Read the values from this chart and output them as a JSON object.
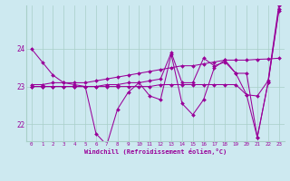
{
  "xlabel": "Windchill (Refroidissement éolien,°C)",
  "bg_color": "#cde9f0",
  "line_color": "#990099",
  "grid_color": "#a8cfc8",
  "xlim": [
    -0.5,
    23.5
  ],
  "ylim": [
    21.55,
    25.15
  ],
  "yticks": [
    22,
    23,
    24
  ],
  "xticks": [
    0,
    1,
    2,
    3,
    4,
    5,
    6,
    7,
    8,
    9,
    10,
    11,
    12,
    13,
    14,
    15,
    16,
    17,
    18,
    19,
    20,
    21,
    22,
    23
  ],
  "series": [
    [
      24.0,
      23.65,
      23.3,
      23.1,
      23.05,
      23.0,
      21.75,
      21.45,
      22.4,
      22.85,
      23.1,
      22.75,
      22.65,
      23.85,
      22.55,
      22.25,
      22.65,
      23.5,
      23.7,
      23.35,
      23.35,
      21.65,
      23.1,
      25.0
    ],
    [
      23.05,
      23.05,
      23.1,
      23.1,
      23.1,
      23.1,
      23.15,
      23.2,
      23.25,
      23.3,
      23.35,
      23.4,
      23.45,
      23.5,
      23.55,
      23.55,
      23.6,
      23.65,
      23.7,
      23.7,
      23.7,
      23.72,
      23.73,
      23.75
    ],
    [
      23.0,
      23.0,
      23.0,
      23.0,
      23.0,
      23.0,
      23.0,
      23.05,
      23.05,
      23.1,
      23.1,
      23.15,
      23.2,
      23.9,
      23.1,
      23.1,
      23.75,
      23.55,
      23.65,
      23.35,
      22.78,
      22.75,
      23.15,
      25.15
    ],
    [
      23.0,
      23.0,
      23.0,
      23.0,
      23.0,
      23.0,
      23.0,
      23.0,
      23.0,
      23.0,
      23.0,
      23.0,
      23.05,
      23.05,
      23.05,
      23.05,
      23.05,
      23.05,
      23.05,
      23.05,
      22.78,
      21.65,
      23.1,
      25.05
    ]
  ]
}
